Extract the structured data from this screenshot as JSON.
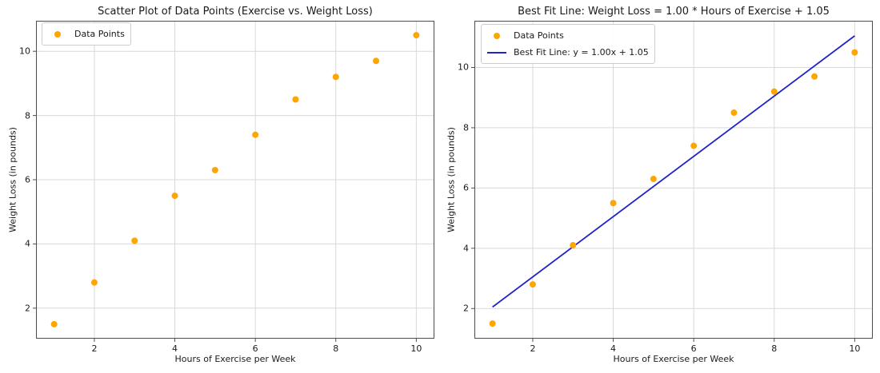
{
  "figure": {
    "background": "#ffffff",
    "colors": {
      "grid": "#d9d9d9",
      "spine": "#4d4d4d",
      "text": "#1a1a1a"
    }
  },
  "chart_data": [
    {
      "type": "scatter",
      "title": "Scatter Plot of Data Points (Exercise vs. Weight Loss)",
      "xlabel": "Hours of Exercise per Week",
      "ylabel": "Weight Loss (in pounds)",
      "x": [
        1,
        2,
        3,
        4,
        5,
        6,
        7,
        8,
        9,
        10
      ],
      "y": [
        1.5,
        2.8,
        4.1,
        5.5,
        6.3,
        7.4,
        8.5,
        9.2,
        9.7,
        10.5
      ],
      "marker_color": "#FFA500",
      "xticks": [
        2,
        4,
        6,
        8,
        10
      ],
      "yticks": [
        2,
        4,
        6,
        8,
        10
      ],
      "xlim": [
        0.55,
        10.45
      ],
      "ylim": [
        1.05,
        10.95
      ],
      "grid": true,
      "legend": {
        "position": "upper-left",
        "entries": [
          {
            "marker": "dot",
            "color": "#FFA500",
            "label": "Data Points"
          }
        ]
      }
    },
    {
      "type": "scatter",
      "title": "Best Fit Line: Weight Loss = 1.00 * Hours of Exercise + 1.05",
      "xlabel": "Hours of Exercise per Week",
      "ylabel": "Weight Loss (in pounds)",
      "x": [
        1,
        2,
        3,
        4,
        5,
        6,
        7,
        8,
        9,
        10
      ],
      "y": [
        1.5,
        2.8,
        4.1,
        5.5,
        6.3,
        7.4,
        8.5,
        9.2,
        9.7,
        10.5
      ],
      "marker_color": "#FFA500",
      "best_fit": {
        "slope": 1.0,
        "intercept": 1.05,
        "x_start": 1,
        "x_end": 10,
        "color": "#2222CC"
      },
      "xticks": [
        2,
        4,
        6,
        8,
        10
      ],
      "yticks": [
        2,
        4,
        6,
        8,
        10
      ],
      "xlim": [
        0.55,
        10.45
      ],
      "ylim": [
        1.0,
        11.55
      ],
      "grid": true,
      "legend": {
        "position": "upper-left",
        "entries": [
          {
            "marker": "dot",
            "color": "#FFA500",
            "label": "Data Points"
          },
          {
            "marker": "line",
            "color": "#2222CC",
            "label": "Best Fit Line: y = 1.00x + 1.05"
          }
        ]
      }
    }
  ]
}
